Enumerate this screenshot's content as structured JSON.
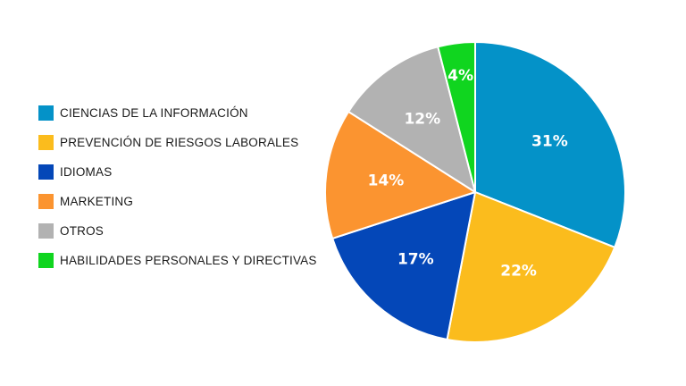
{
  "chart_data": {
    "type": "pie",
    "title": "",
    "legend_position": "left",
    "slices": [
      {
        "label": "CIENCIAS DE LA INFORMACIÓN",
        "value": 31,
        "display": "31%",
        "color": "#0492c8"
      },
      {
        "label": "PREVENCIÓN DE RIESGOS LABORALES",
        "value": 22,
        "display": "22%",
        "color": "#fbbc1d"
      },
      {
        "label": "IDIOMAS",
        "value": 17,
        "display": "17%",
        "color": "#0447b8"
      },
      {
        "label": "MARKETING",
        "value": 14,
        "display": "14%",
        "color": "#fb9430"
      },
      {
        "label": "OTROS",
        "value": 12,
        "display": "12%",
        "color": "#b2b2b2"
      },
      {
        "label": "HABILIDADES PERSONALES Y DIRECTIVAS",
        "value": 4,
        "display": "4%",
        "color": "#10d51f"
      }
    ]
  }
}
